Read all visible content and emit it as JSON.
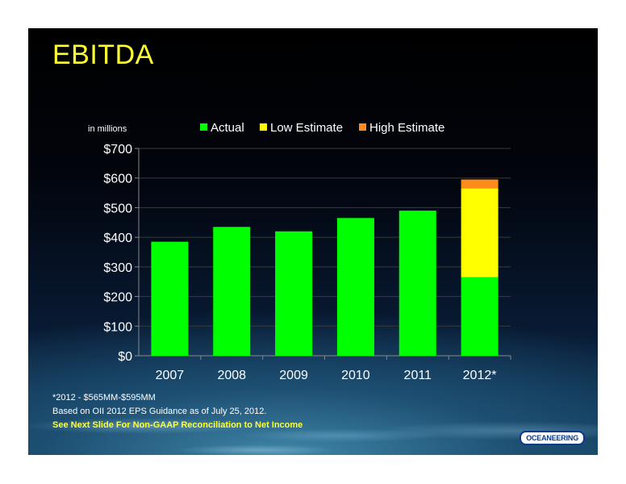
{
  "slide": {
    "title": "EBITDA",
    "notes": [
      "*2012 - $565MM-$595MM",
      "Based on OII 2012 EPS Guidance as of  July 25, 2012.",
      "See Next Slide For Non-GAAP Reconciliation to Net Income"
    ],
    "logo": "OCEANEERING"
  },
  "colors": {
    "actual": "#00ff00",
    "low_estimate": "#ffff00",
    "high_estimate": "#ff8c1a",
    "title": "#ffff33",
    "text": "#ffffff"
  },
  "chart_data": {
    "type": "bar",
    "stacked": true,
    "title": "",
    "ylabel": "in millions",
    "xlabel": "",
    "categories": [
      "2007",
      "2008",
      "2009",
      "2010",
      "2011",
      "2012*"
    ],
    "series": [
      {
        "name": "Actual",
        "values": [
          385,
          435,
          420,
          465,
          490,
          265
        ]
      },
      {
        "name": "Low Estimate",
        "values": [
          0,
          0,
          0,
          0,
          0,
          300
        ]
      },
      {
        "name": "High Estimate",
        "values": [
          0,
          0,
          0,
          0,
          0,
          30
        ]
      }
    ],
    "ylim": [
      0,
      700
    ],
    "yticks": [
      0,
      100,
      200,
      300,
      400,
      500,
      600,
      700
    ],
    "ytick_labels": [
      "$0",
      "$100",
      "$200",
      "$300",
      "$400",
      "$500",
      "$600",
      "$700"
    ],
    "grid": true,
    "legend": "top"
  }
}
